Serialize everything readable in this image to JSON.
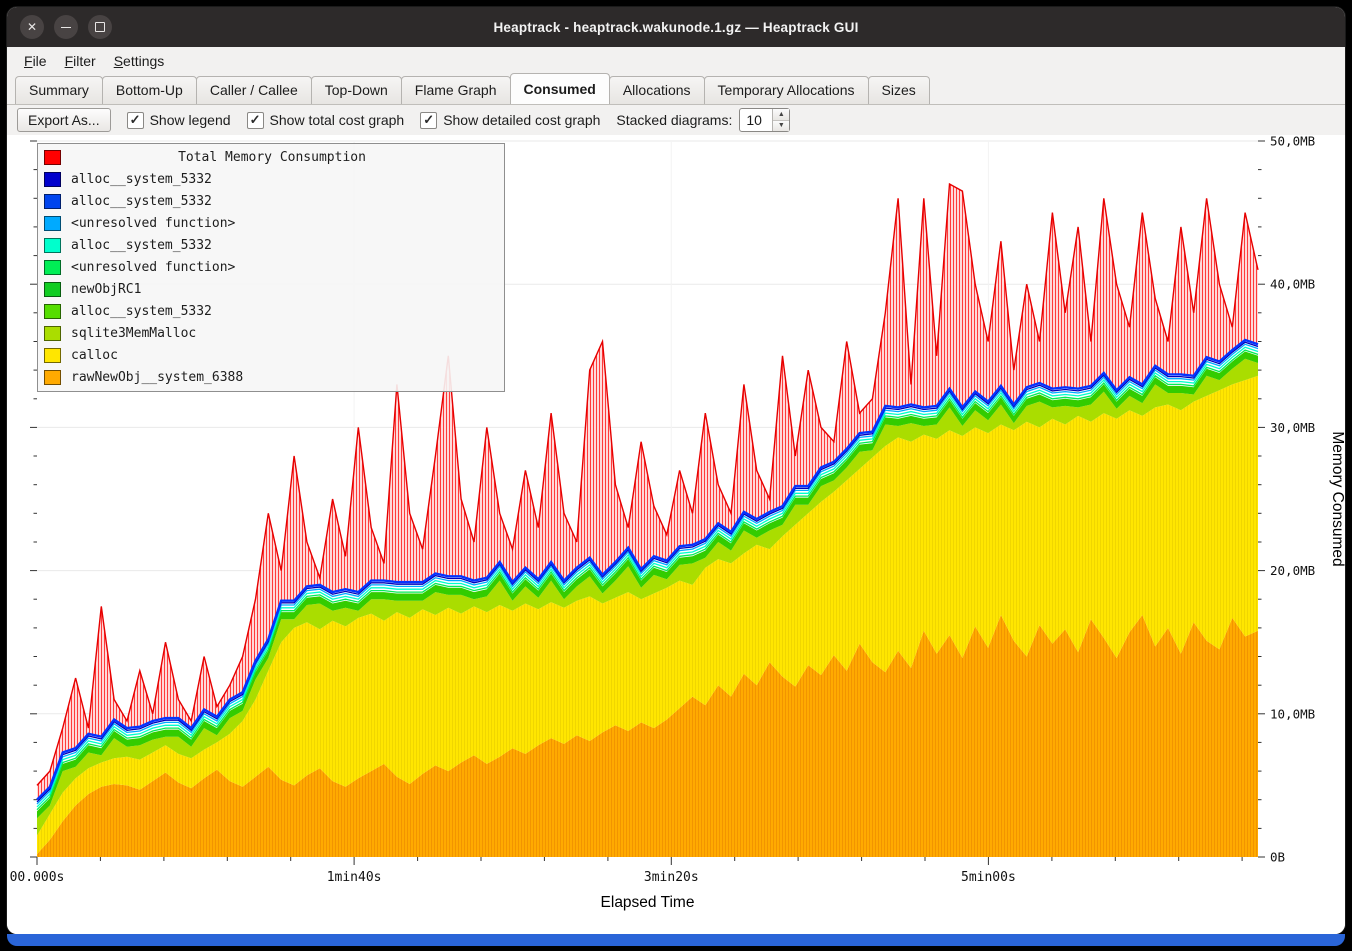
{
  "window": {
    "title": "Heaptrack - heaptrack.wakunode.1.gz — Heaptrack GUI"
  },
  "menu": {
    "items": [
      {
        "label": "File"
      },
      {
        "label": "Filter"
      },
      {
        "label": "Settings"
      }
    ]
  },
  "tabs": {
    "items": [
      {
        "label": "Summary"
      },
      {
        "label": "Bottom-Up"
      },
      {
        "label": "Caller / Callee"
      },
      {
        "label": "Top-Down"
      },
      {
        "label": "Flame Graph"
      },
      {
        "label": "Consumed",
        "active": true
      },
      {
        "label": "Allocations"
      },
      {
        "label": "Temporary Allocations"
      },
      {
        "label": "Sizes"
      }
    ]
  },
  "toolbar": {
    "export_label": "Export As...",
    "checkboxes": [
      {
        "label": "Show legend",
        "checked": true
      },
      {
        "label": "Show total cost graph",
        "checked": true
      },
      {
        "label": "Show detailed cost graph",
        "checked": true
      }
    ],
    "stacked_label": "Stacked diagrams:",
    "stacked_value": "10"
  },
  "legend": {
    "title": "Total Memory Consumption",
    "title_color": "#ff0000",
    "items": [
      {
        "label": "alloc__system_5332",
        "color": "#0000cc"
      },
      {
        "label": "alloc__system_5332",
        "color": "#0044ee"
      },
      {
        "label": "<unresolved function>",
        "color": "#00aaff"
      },
      {
        "label": "alloc__system_5332",
        "color": "#00ffcc"
      },
      {
        "label": "<unresolved function>",
        "color": "#00ee55"
      },
      {
        "label": "newObjRC1",
        "color": "#11cc22"
      },
      {
        "label": "alloc__system_5332",
        "color": "#55dd00"
      },
      {
        "label": "sqlite3MemMalloc",
        "color": "#aadd00"
      },
      {
        "label": "calloc",
        "color": "#ffe600"
      },
      {
        "label": "rawNewObj__system_6388",
        "color": "#ffaa00"
      }
    ]
  },
  "chart_data": {
    "type": "area",
    "title": "",
    "xlabel": "Elapsed Time",
    "ylabel": "Memory Consumed",
    "unit": "MB",
    "ylim": [
      0,
      50
    ],
    "t_max": 385,
    "grid": true,
    "legend_position": "top-left",
    "x_ticks": [
      {
        "t": 0,
        "label": "00.000s"
      },
      {
        "t": 100,
        "label": "1min40s"
      },
      {
        "t": 200,
        "label": "3min20s"
      },
      {
        "t": 300,
        "label": "5min00s"
      }
    ],
    "y_ticks": [
      {
        "v": 0,
        "label": "0B"
      },
      {
        "v": 10,
        "label": "10,0MB"
      },
      {
        "v": 20,
        "label": "20,0MB"
      },
      {
        "v": 30,
        "label": "30,0MB"
      },
      {
        "v": 40,
        "label": "40,0MB"
      },
      {
        "v": 50,
        "label": "50,0MB"
      }
    ],
    "total_base_offset": 0.8,
    "series": [
      {
        "name": "rawNewObj__system_6388",
        "color": "#ffaa00",
        "role": "band_top",
        "values": [
          0.2,
          1.2,
          2.5,
          3.6,
          4.4,
          4.9,
          5.1,
          5.0,
          4.7,
          5.3,
          5.9,
          5.2,
          4.8,
          5.5,
          6.1,
          5.3,
          4.9,
          5.6,
          6.3,
          5.4,
          5.0,
          5.7,
          6.2,
          5.3,
          4.9,
          5.5,
          6.0,
          6.5,
          5.6,
          5.1,
          5.8,
          6.4,
          6.0,
          6.6,
          7.1,
          6.5,
          7.0,
          7.6,
          7.2,
          7.8,
          8.3,
          7.9,
          8.5,
          8.1,
          8.7,
          9.2,
          8.8,
          9.4,
          9.0,
          9.6,
          10.4,
          11.2,
          10.6,
          12.0,
          11.2,
          12.8,
          12.0,
          13.6,
          12.6,
          11.9,
          13.4,
          12.7,
          14.1,
          13.0,
          14.9,
          13.6,
          12.9,
          14.4,
          13.2,
          15.8,
          14.2,
          15.5,
          13.9,
          16.1,
          14.6,
          16.9,
          15.1,
          14.0,
          16.2,
          14.9,
          15.9,
          14.3,
          16.6,
          15.3,
          13.9,
          15.7,
          16.9,
          14.7,
          16.0,
          14.2,
          16.4,
          15.1,
          14.5,
          16.7,
          15.4,
          15.8
        ]
      },
      {
        "name": "calloc",
        "color": "#ffe600",
        "role": "band_top",
        "values": [
          1.5,
          3.0,
          4.5,
          5.5,
          6.2,
          6.6,
          6.9,
          7.0,
          6.8,
          7.3,
          7.8,
          7.2,
          6.9,
          7.5,
          8.0,
          8.6,
          9.5,
          11.0,
          13.0,
          15.0,
          16.0,
          16.4,
          15.9,
          16.5,
          16.1,
          16.7,
          17.0,
          16.5,
          17.1,
          16.7,
          17.3,
          16.9,
          17.4,
          17.0,
          17.5,
          17.1,
          17.6,
          17.2,
          17.7,
          17.3,
          17.8,
          17.4,
          17.9,
          18.2,
          17.7,
          18.1,
          18.5,
          18.0,
          18.4,
          18.8,
          19.3,
          19.0,
          20.2,
          20.8,
          20.5,
          21.2,
          21.8,
          21.5,
          22.4,
          23.2,
          24.0,
          24.8,
          25.5,
          26.3,
          27.1,
          27.9,
          28.7,
          29.3,
          29.0,
          29.5,
          29.2,
          29.8,
          29.4,
          30.0,
          29.6,
          30.2,
          29.8,
          30.4,
          30.0,
          30.6,
          30.2,
          30.8,
          30.4,
          31.0,
          30.6,
          31.2,
          30.8,
          31.4,
          31.6,
          31.2,
          31.8,
          32.2,
          32.6,
          33.0,
          33.3,
          33.6
        ]
      },
      {
        "name": "sqlite3MemMalloc",
        "color": "#aadd00",
        "role": "band_width",
        "values": [
          1.2,
          0.6,
          1.5,
          0.8,
          1.1,
          0.5,
          1.4,
          0.7,
          1.0,
          0.9,
          0.6,
          1.2,
          0.8,
          1.5,
          0.5,
          1.1,
          0.7,
          1.4,
          0.9,
          1.6,
          0.6,
          1.2,
          1.8,
          0.7,
          1.3,
          0.5,
          1.0,
          1.5,
          0.8,
          1.2,
          0.6,
          1.6,
          0.9,
          1.3,
          0.5,
          1.1,
          1.7,
          0.7,
          1.2,
          0.8,
          1.5,
          0.6,
          1.0,
          1.4,
          0.7,
          1.2,
          1.8,
          0.8,
          1.3,
          0.6,
          1.1,
          1.5,
          0.7,
          1.2,
          0.9,
          1.6,
          0.5,
          1.3,
          0.8,
          1.4,
          0.6,
          1.1,
          0.8,
          0.9,
          1.2,
          0.5,
          1.5,
          0.8,
          1.3,
          0.6,
          1.0,
          1.6,
          0.7,
          1.2,
          0.9,
          1.4,
          0.5,
          1.1,
          1.8,
          0.8,
          1.3,
          0.6,
          1.2,
          1.5,
          0.7,
          1.0,
          0.9,
          1.6,
          0.8,
          1.2,
          0.5,
          1.4,
          0.7,
          1.1,
          1.5,
          0.9
        ]
      },
      {
        "name": "green group (alloc__system_5332 / newObjRC1 / <unresolved function>)",
        "color": "#33cc00",
        "role": "band_width_const",
        "value": 0.5
      },
      {
        "name": "Total Memory Consumption",
        "color": "#ff0000",
        "role": "top",
        "values": [
          5.0,
          6.0,
          9.0,
          12.5,
          9.0,
          17.5,
          11.0,
          9.5,
          13.0,
          10.0,
          15.0,
          11.0,
          9.5,
          14.0,
          10.5,
          12.0,
          14.0,
          18.0,
          24.0,
          20.0,
          28.0,
          22.0,
          19.5,
          25.0,
          21.0,
          30.0,
          23.0,
          20.5,
          33.0,
          24.0,
          21.5,
          28.0,
          35.0,
          25.0,
          22.0,
          30.0,
          24.0,
          21.5,
          27.0,
          23.0,
          31.0,
          24.0,
          22.0,
          34.0,
          36.0,
          26.0,
          23.0,
          29.0,
          24.5,
          22.5,
          27.0,
          24.0,
          31.0,
          26.0,
          24.0,
          33.0,
          27.0,
          25.0,
          35.0,
          28.0,
          34.0,
          30.0,
          29.0,
          36.0,
          31.0,
          32.0,
          38.0,
          46.0,
          33.0,
          46.0,
          35.0,
          47.0,
          46.5,
          40.0,
          36.0,
          43.0,
          34.0,
          40.0,
          36.0,
          45.0,
          38.0,
          44.0,
          36.0,
          46.0,
          40.0,
          37.0,
          45.0,
          39.0,
          36.0,
          44.0,
          38.0,
          46.0,
          40.0,
          37.0,
          45.0,
          41.0
        ]
      }
    ],
    "thin_lines": [
      {
        "name": "<unresolved function>",
        "color": "#00ee55",
        "offset": 0.1
      },
      {
        "name": "alloc__system_5332",
        "color": "#00ffcc",
        "offset": 0.3
      },
      {
        "name": "<unresolved function>",
        "color": "#00aaff",
        "offset": 0.5
      },
      {
        "name": "alloc__system_5332",
        "color": "#0000bb",
        "offset": 0.65
      },
      {
        "name": "alloc__system_5332",
        "color": "#0433ff",
        "offset": 0.8
      }
    ]
  }
}
